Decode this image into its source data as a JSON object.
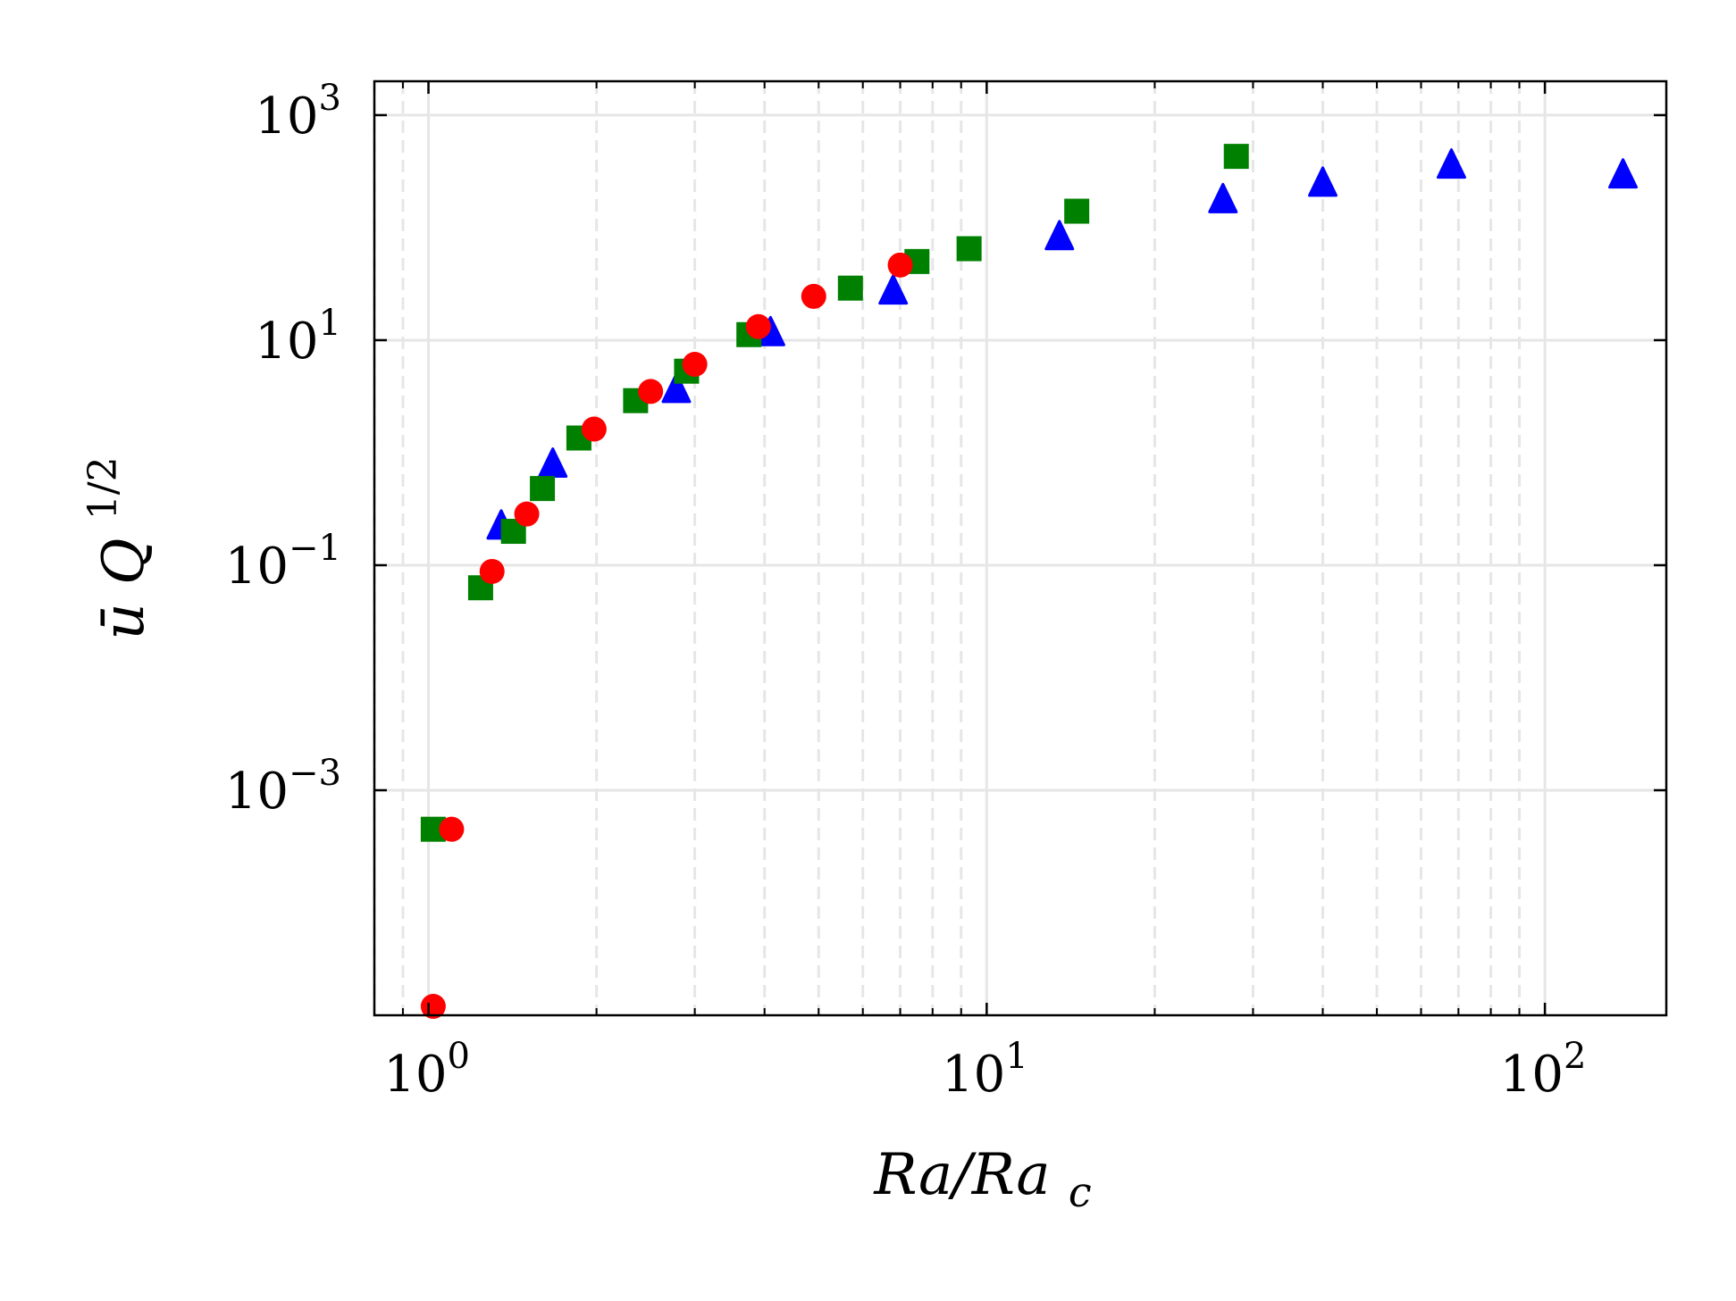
{
  "chart_data": {
    "type": "scatter",
    "xscale": "log",
    "yscale": "log",
    "xlim": [
      0.8,
      165
    ],
    "ylim": [
      1e-05,
      2000
    ],
    "xlabel": "Ra/Ra_c",
    "ylabel": "ū Q^{1/2}",
    "grid": true,
    "legend": "none",
    "x_ticks": [
      {
        "value": 1,
        "base": "10",
        "exp": "0"
      },
      {
        "value": 10,
        "base": "10",
        "exp": "1"
      },
      {
        "value": 100,
        "base": "10",
        "exp": "2"
      }
    ],
    "y_ticks": [
      {
        "value": 0.001,
        "base": "10",
        "exp": "−3"
      },
      {
        "value": 0.1,
        "base": "10",
        "exp": "−1"
      },
      {
        "value": 10,
        "base": "10",
        "exp": "1"
      },
      {
        "value": 1000,
        "base": "10",
        "exp": "3"
      }
    ],
    "series": [
      {
        "name": "triangles",
        "marker": "triangle",
        "color": "#0000ff",
        "points": [
          [
            1.35,
            0.22
          ],
          [
            1.67,
            0.78
          ],
          [
            2.78,
            3.6
          ],
          [
            4.1,
            11.5
          ],
          [
            6.8,
            27
          ],
          [
            13.5,
            82
          ],
          [
            26.5,
            175
          ],
          [
            40,
            245
          ],
          [
            68,
            355
          ],
          [
            138,
            290
          ]
        ]
      },
      {
        "name": "squares",
        "marker": "square",
        "color": "#008000",
        "points": [
          [
            1.02,
            0.00045
          ],
          [
            1.24,
            0.063
          ],
          [
            1.42,
            0.2
          ],
          [
            1.6,
            0.48
          ],
          [
            1.86,
            1.35
          ],
          [
            2.35,
            2.9
          ],
          [
            2.9,
            5.3
          ],
          [
            3.75,
            11.2
          ],
          [
            5.7,
            29
          ],
          [
            7.5,
            50
          ],
          [
            9.3,
            65
          ],
          [
            14.5,
            140
          ],
          [
            28,
            430
          ]
        ]
      },
      {
        "name": "circles",
        "marker": "circle",
        "color": "#ff0000",
        "points": [
          [
            1.02,
            1.2e-05
          ],
          [
            1.1,
            0.00045
          ],
          [
            1.3,
            0.088
          ],
          [
            1.5,
            0.285
          ],
          [
            1.98,
            1.62
          ],
          [
            2.5,
            3.5
          ],
          [
            3.0,
            6.1
          ],
          [
            3.9,
            13.2
          ],
          [
            4.9,
            24.5
          ],
          [
            7.0,
            46.5
          ]
        ]
      }
    ]
  }
}
